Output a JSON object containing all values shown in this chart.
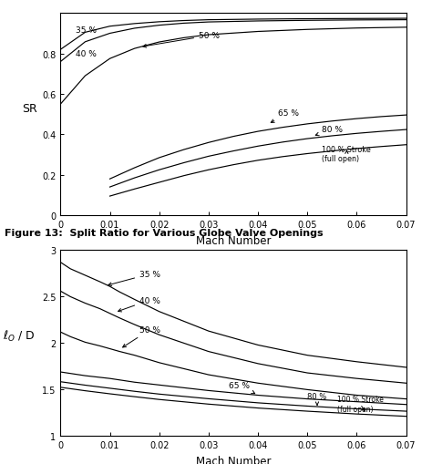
{
  "fig_width": 4.74,
  "fig_height": 5.1,
  "dpi": 100,
  "top_title": "Figure 13:  Split Ratio for Various Globe Valve Openings",
  "plot1": {
    "ylabel": "SR",
    "xlabel": "Mach Number",
    "xlim": [
      0,
      0.07
    ],
    "ylim": [
      0,
      1.0
    ],
    "yticks": [
      0,
      0.2,
      0.4,
      0.6,
      0.8
    ],
    "xticks": [
      0,
      0.01,
      0.02,
      0.03,
      0.04,
      0.05,
      0.06,
      0.07
    ],
    "xtick_labels": [
      "0",
      "0.01",
      "0.02",
      "0.03",
      "0.04",
      "0.05",
      "0.06",
      "0.07"
    ],
    "ytick_labels": [
      "0",
      "0.2",
      "0.4",
      "0.6",
      "0.8"
    ],
    "curves": {
      "35": {
        "x": [
          0,
          0.005,
          0.01,
          0.015,
          0.02,
          0.025,
          0.03,
          0.04,
          0.05,
          0.06,
          0.07
        ],
        "y": [
          0.82,
          0.905,
          0.935,
          0.948,
          0.957,
          0.963,
          0.967,
          0.97,
          0.972,
          0.973,
          0.974
        ]
      },
      "40": {
        "x": [
          0,
          0.005,
          0.01,
          0.015,
          0.02,
          0.025,
          0.03,
          0.04,
          0.05,
          0.06,
          0.07
        ],
        "y": [
          0.76,
          0.858,
          0.9,
          0.925,
          0.94,
          0.95,
          0.956,
          0.961,
          0.964,
          0.966,
          0.967
        ]
      },
      "50": {
        "x": [
          0,
          0.005,
          0.01,
          0.015,
          0.02,
          0.025,
          0.03,
          0.04,
          0.05,
          0.06,
          0.07
        ],
        "y": [
          0.55,
          0.69,
          0.775,
          0.825,
          0.857,
          0.878,
          0.893,
          0.909,
          0.919,
          0.926,
          0.93
        ]
      },
      "65": {
        "x": [
          0.01,
          0.015,
          0.02,
          0.025,
          0.03,
          0.035,
          0.04,
          0.045,
          0.05,
          0.055,
          0.06,
          0.065,
          0.07
        ],
        "y": [
          0.18,
          0.235,
          0.285,
          0.325,
          0.36,
          0.39,
          0.415,
          0.435,
          0.452,
          0.466,
          0.478,
          0.488,
          0.496
        ]
      },
      "80": {
        "x": [
          0.01,
          0.015,
          0.02,
          0.025,
          0.03,
          0.035,
          0.04,
          0.045,
          0.05,
          0.055,
          0.06,
          0.065,
          0.07
        ],
        "y": [
          0.14,
          0.185,
          0.225,
          0.26,
          0.292,
          0.318,
          0.342,
          0.362,
          0.379,
          0.393,
          0.405,
          0.415,
          0.424
        ]
      },
      "100": {
        "x": [
          0.01,
          0.015,
          0.02,
          0.025,
          0.03,
          0.035,
          0.04,
          0.045,
          0.05,
          0.055,
          0.06,
          0.065,
          0.07
        ],
        "y": [
          0.095,
          0.13,
          0.163,
          0.196,
          0.225,
          0.25,
          0.272,
          0.29,
          0.305,
          0.318,
          0.33,
          0.34,
          0.349
        ]
      }
    }
  },
  "plot2": {
    "ylabel": "$\\ell_O$ / D",
    "xlabel": "Mach Number",
    "xlim": [
      0,
      0.07
    ],
    "ylim": [
      1.0,
      3.0
    ],
    "yticks": [
      1.0,
      1.5,
      2.0,
      2.5,
      3.0
    ],
    "xticks": [
      0,
      0.01,
      0.02,
      0.03,
      0.04,
      0.05,
      0.06,
      0.07
    ],
    "xtick_labels": [
      "0",
      "0.01",
      "0.02",
      "0.03",
      "0.04",
      "0.05",
      "0.06",
      "0.07"
    ],
    "ytick_labels": [
      "1",
      "1.5",
      "2",
      "2.5",
      "3"
    ],
    "curves": {
      "35": {
        "x": [
          0,
          0.002,
          0.005,
          0.008,
          0.01,
          0.012,
          0.015,
          0.02,
          0.03,
          0.04,
          0.05,
          0.06,
          0.07
        ],
        "y": [
          2.87,
          2.8,
          2.73,
          2.66,
          2.61,
          2.55,
          2.47,
          2.34,
          2.13,
          1.98,
          1.87,
          1.8,
          1.74
        ]
      },
      "40": {
        "x": [
          0,
          0.002,
          0.005,
          0.008,
          0.01,
          0.012,
          0.015,
          0.02,
          0.03,
          0.04,
          0.05,
          0.06,
          0.07
        ],
        "y": [
          2.56,
          2.5,
          2.43,
          2.37,
          2.32,
          2.27,
          2.2,
          2.09,
          1.91,
          1.78,
          1.68,
          1.62,
          1.57
        ]
      },
      "50": {
        "x": [
          0,
          0.002,
          0.005,
          0.008,
          0.01,
          0.012,
          0.015,
          0.02,
          0.03,
          0.04,
          0.05,
          0.06,
          0.07
        ],
        "y": [
          2.12,
          2.07,
          2.01,
          1.97,
          1.94,
          1.91,
          1.87,
          1.79,
          1.66,
          1.57,
          1.5,
          1.44,
          1.4
        ]
      },
      "65": {
        "x": [
          0,
          0.005,
          0.01,
          0.015,
          0.02,
          0.03,
          0.04,
          0.05,
          0.06,
          0.07
        ],
        "y": [
          1.69,
          1.65,
          1.62,
          1.58,
          1.55,
          1.49,
          1.44,
          1.4,
          1.37,
          1.34
        ]
      },
      "80": {
        "x": [
          0,
          0.005,
          0.01,
          0.015,
          0.02,
          0.03,
          0.04,
          0.05,
          0.06,
          0.07
        ],
        "y": [
          1.585,
          1.548,
          1.515,
          1.482,
          1.452,
          1.402,
          1.358,
          1.323,
          1.293,
          1.268
        ]
      },
      "100": {
        "x": [
          0,
          0.005,
          0.01,
          0.015,
          0.02,
          0.03,
          0.04,
          0.05,
          0.06,
          0.07
        ],
        "y": [
          1.525,
          1.488,
          1.455,
          1.424,
          1.394,
          1.344,
          1.302,
          1.268,
          1.238,
          1.213
        ]
      }
    }
  }
}
